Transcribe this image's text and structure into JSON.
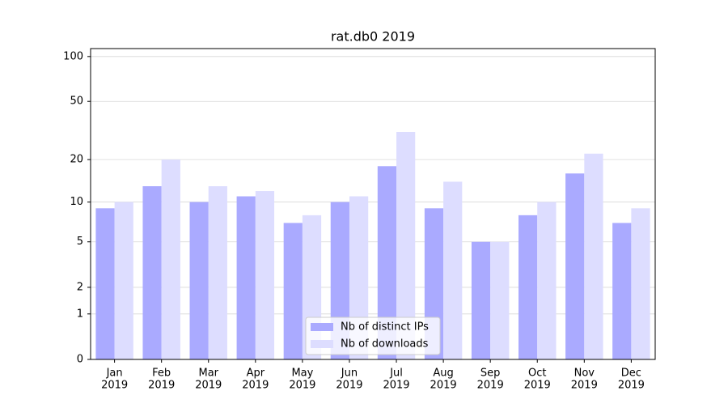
{
  "chart_data": {
    "type": "bar",
    "title": "rat.db0 2019",
    "categories": [
      [
        "Jan",
        "2019"
      ],
      [
        "Feb",
        "2019"
      ],
      [
        "Mar",
        "2019"
      ],
      [
        "Apr",
        "2019"
      ],
      [
        "May",
        "2019"
      ],
      [
        "Jun",
        "2019"
      ],
      [
        "Jul",
        "2019"
      ],
      [
        "Aug",
        "2019"
      ],
      [
        "Sep",
        "2019"
      ],
      [
        "Oct",
        "2019"
      ],
      [
        "Nov",
        "2019"
      ],
      [
        "Dec",
        "2019"
      ]
    ],
    "series": [
      {
        "name": "Nb of distinct IPs",
        "color": "#aaaaff",
        "values": [
          9,
          13,
          10,
          11,
          7,
          10,
          18,
          9,
          5,
          8,
          16,
          7
        ]
      },
      {
        "name": "Nb of downloads",
        "color": "#ddddff",
        "values": [
          10,
          20,
          13,
          12,
          8,
          11,
          31,
          14,
          5,
          10,
          22,
          9
        ]
      }
    ],
    "yscale": "log1p",
    "ylim": [
      0,
      113
    ],
    "yticks": [
      0,
      1,
      2,
      5,
      10,
      20,
      50,
      100
    ],
    "grid": true,
    "legend": "lower center"
  }
}
